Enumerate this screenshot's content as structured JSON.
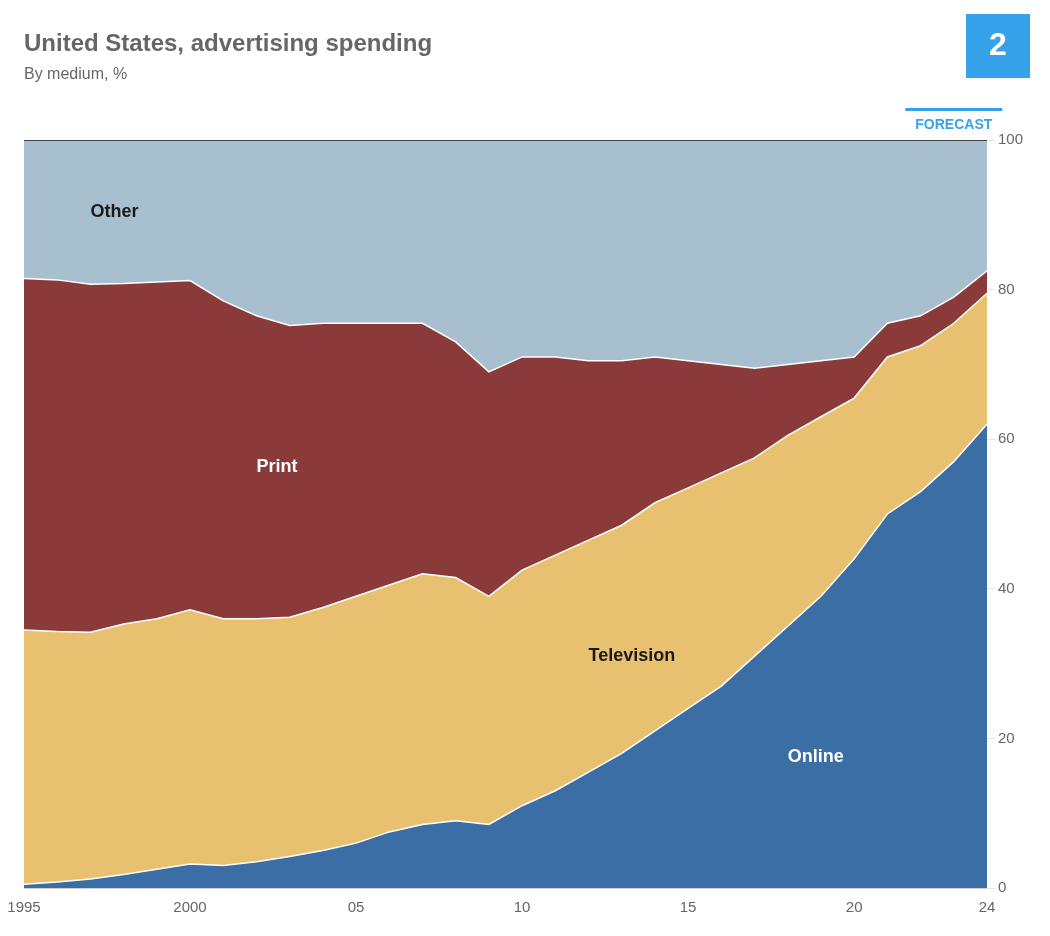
{
  "chart_data": {
    "type": "area",
    "title": "United States, advertising spending",
    "subtitle": "By medium, %",
    "stacked": true,
    "x": [
      1995,
      1996,
      1997,
      1998,
      1999,
      2000,
      2001,
      2002,
      2003,
      2004,
      2005,
      2006,
      2007,
      2008,
      2009,
      2010,
      2011,
      2012,
      2013,
      2014,
      2015,
      2016,
      2017,
      2018,
      2019,
      2020,
      2021,
      2022,
      2023,
      2024
    ],
    "series": [
      {
        "name": "Online",
        "color": "#3a6ea5",
        "values": [
          0.5,
          0.8,
          1.2,
          1.8,
          2.5,
          3.2,
          3.0,
          3.5,
          4.2,
          5.0,
          6.0,
          7.5,
          8.5,
          9.0,
          8.5,
          11.0,
          13.0,
          15.5,
          18.0,
          21.0,
          24.0,
          27.0,
          31.0,
          35.0,
          39.0,
          44.0,
          50.0,
          53.0,
          57.0,
          62.0
        ]
      },
      {
        "name": "Television",
        "color": "#e8c170",
        "values": [
          34.0,
          33.5,
          33.0,
          33.5,
          33.5,
          34.0,
          33.0,
          32.5,
          32.0,
          32.5,
          33.0,
          33.0,
          33.5,
          32.5,
          30.5,
          31.5,
          31.5,
          31.0,
          30.5,
          30.5,
          29.5,
          28.5,
          26.5,
          25.5,
          24.0,
          21.5,
          21.0,
          19.5,
          18.5,
          17.5
        ]
      },
      {
        "name": "Print",
        "color": "#8b3a3a",
        "values": [
          47.0,
          47.0,
          46.5,
          45.5,
          45.0,
          44.0,
          42.5,
          40.5,
          39.0,
          38.0,
          36.5,
          35.0,
          33.5,
          31.5,
          30.0,
          28.5,
          26.5,
          24.0,
          22.0,
          19.5,
          17.0,
          14.5,
          12.0,
          9.5,
          7.5,
          5.5,
          4.5,
          4.0,
          3.5,
          3.0
        ]
      },
      {
        "name": "Other",
        "color": "#a8bfcf",
        "values": [
          18.5,
          18.7,
          19.3,
          19.2,
          19.0,
          18.8,
          21.5,
          23.5,
          24.8,
          24.5,
          24.5,
          24.5,
          24.5,
          27.0,
          31.0,
          29.0,
          29.0,
          29.5,
          29.5,
          29.0,
          29.5,
          30.0,
          30.5,
          30.0,
          29.5,
          29.0,
          24.5,
          23.5,
          21.0,
          17.5
        ]
      }
    ],
    "xlim": [
      1995,
      2024
    ],
    "xticks": [
      1995,
      2000,
      {
        "value": 2005,
        "label": "05"
      },
      {
        "value": 2010,
        "label": "10"
      },
      {
        "value": 2015,
        "label": "15"
      },
      {
        "value": 2020,
        "label": "20"
      },
      {
        "value": 2024,
        "label": "24"
      }
    ],
    "ylim": [
      0,
      100
    ],
    "yticks": [
      0,
      20,
      40,
      60,
      80,
      100
    ],
    "grid": true,
    "annotations": [
      {
        "text": "FORECAST",
        "x": [
          2022,
          2024
        ]
      },
      {
        "text": "2"
      }
    ]
  }
}
